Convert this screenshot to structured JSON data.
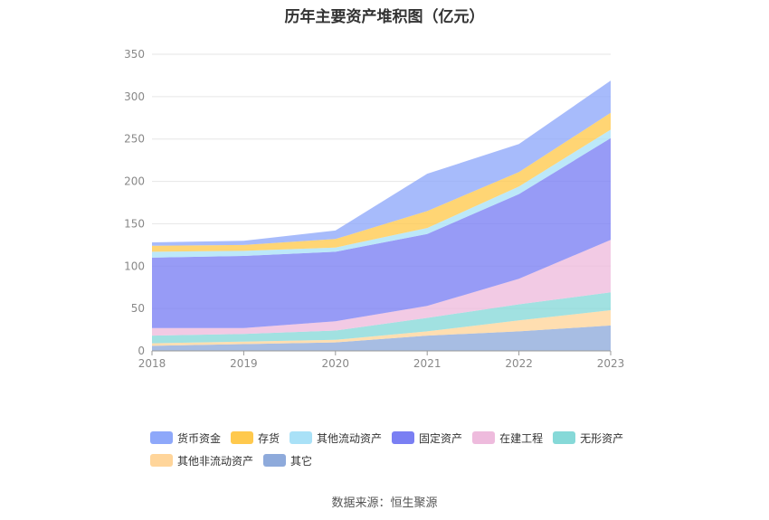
{
  "title": "历年主要资产堆积图（亿元）",
  "source": "数据来源：恒生聚源",
  "chart_data": {
    "type": "area",
    "stacked": true,
    "title": "历年主要资产堆积图（亿元）",
    "x": [
      "2018",
      "2019",
      "2020",
      "2021",
      "2022",
      "2023"
    ],
    "yticks": [
      "0",
      "50",
      "100",
      "150",
      "200",
      "250",
      "300",
      "350"
    ],
    "ylim": [
      0,
      350
    ],
    "grid": true,
    "legend_position": "bottom",
    "series": [
      {
        "name": "其它",
        "color": "#8eaadb",
        "values": [
          6,
          8,
          10,
          18,
          23,
          30
        ]
      },
      {
        "name": "其他非流动资产",
        "color": "#ffd59a",
        "values": [
          3,
          3,
          3,
          5,
          13,
          18
        ]
      },
      {
        "name": "无形资产",
        "color": "#86d9d8",
        "values": [
          9,
          9,
          11,
          16,
          19,
          21
        ]
      },
      {
        "name": "在建工程",
        "color": "#eebbdd",
        "values": [
          9,
          7,
          11,
          14,
          30,
          62
        ]
      },
      {
        "name": "固定资产",
        "color": "#7a7ff3",
        "values": [
          83,
          85,
          82,
          85,
          100,
          120
        ]
      },
      {
        "name": "其他流动资产",
        "color": "#a9e1f7",
        "values": [
          7,
          6,
          5,
          7,
          9,
          10
        ]
      },
      {
        "name": "存货",
        "color": "#ffc94d",
        "values": [
          7,
          7,
          10,
          20,
          17,
          20
        ]
      },
      {
        "name": "货币资金",
        "color": "#8ea8fa",
        "values": [
          4,
          5,
          10,
          44,
          33,
          38
        ]
      }
    ]
  },
  "legend": {
    "row1": [
      {
        "name": "货币资金",
        "color": "#8ea8fa"
      },
      {
        "name": "存货",
        "color": "#ffc94d"
      },
      {
        "name": "其他流动资产",
        "color": "#a9e1f7"
      },
      {
        "name": "固定资产",
        "color": "#7a7ff3"
      },
      {
        "name": "在建工程",
        "color": "#eebbdd"
      },
      {
        "name": "无形资产",
        "color": "#86d9d8"
      }
    ],
    "row2": [
      {
        "name": "其他非流动资产",
        "color": "#ffd59a"
      },
      {
        "name": "其它",
        "color": "#8eaadb"
      }
    ]
  }
}
